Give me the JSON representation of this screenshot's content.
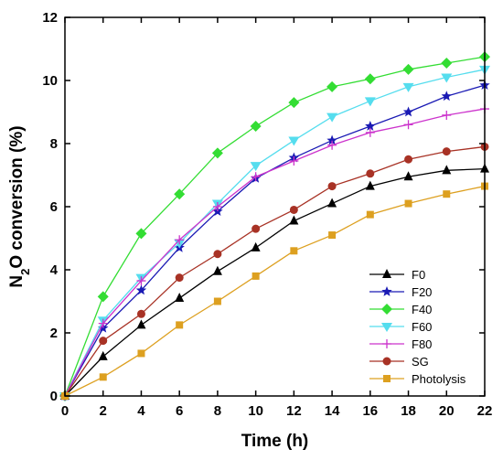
{
  "chart_data": {
    "type": "line",
    "title": "",
    "xlabel": "Time (h)",
    "ylabel": {
      "main": "N",
      "sub": "2",
      "rest": "O conversion (%)"
    },
    "xlim": [
      0,
      22
    ],
    "ylim": [
      0,
      12
    ],
    "xticks": [
      0,
      2,
      4,
      6,
      8,
      10,
      12,
      14,
      16,
      18,
      20,
      22
    ],
    "yticks": [
      0,
      2,
      4,
      6,
      8,
      10,
      12
    ],
    "grid": false,
    "legend_position": "bottom-right",
    "series": [
      {
        "name": "F0",
        "color": "#000000",
        "marker": "triangle-up",
        "x": [
          0,
          2,
          4,
          6,
          8,
          10,
          12,
          14,
          16,
          18,
          20,
          22
        ],
        "y": [
          0,
          1.25,
          2.25,
          3.1,
          3.95,
          4.7,
          5.55,
          6.1,
          6.65,
          6.95,
          7.15,
          7.2
        ]
      },
      {
        "name": "F20",
        "color": "#1a1ab4",
        "marker": "star",
        "x": [
          0,
          2,
          4,
          6,
          8,
          10,
          12,
          14,
          16,
          18,
          20,
          22
        ],
        "y": [
          0,
          2.15,
          3.35,
          4.7,
          5.85,
          6.9,
          7.55,
          8.1,
          8.55,
          9.0,
          9.5,
          9.85
        ]
      },
      {
        "name": "F40",
        "color": "#33dd33",
        "marker": "diamond",
        "x": [
          0,
          2,
          4,
          6,
          8,
          10,
          12,
          14,
          16,
          18,
          20,
          22
        ],
        "y": [
          0,
          3.15,
          5.15,
          6.4,
          7.7,
          8.55,
          9.3,
          9.8,
          10.05,
          10.35,
          10.55,
          10.75
        ]
      },
      {
        "name": "F60",
        "color": "#55ddee",
        "marker": "triangle-down",
        "x": [
          0,
          2,
          4,
          6,
          8,
          10,
          12,
          14,
          16,
          18,
          20,
          22
        ],
        "y": [
          0,
          2.4,
          3.75,
          4.85,
          6.1,
          7.3,
          8.1,
          8.85,
          9.35,
          9.8,
          10.1,
          10.35
        ]
      },
      {
        "name": "F80",
        "color": "#cc33cc",
        "marker": "plus",
        "x": [
          0,
          2,
          4,
          6,
          8,
          10,
          12,
          14,
          16,
          18,
          20,
          22
        ],
        "y": [
          0,
          2.3,
          3.65,
          4.95,
          6.0,
          6.95,
          7.45,
          7.95,
          8.35,
          8.6,
          8.9,
          9.1
        ]
      },
      {
        "name": "SG",
        "color": "#a83225",
        "marker": "circle",
        "x": [
          0,
          2,
          4,
          6,
          8,
          10,
          12,
          14,
          16,
          18,
          20,
          22
        ],
        "y": [
          0,
          1.75,
          2.6,
          3.75,
          4.5,
          5.3,
          5.9,
          6.65,
          7.05,
          7.5,
          7.75,
          7.9
        ]
      },
      {
        "name": "Photolysis",
        "color": "#dda020",
        "marker": "square",
        "x": [
          0,
          2,
          4,
          6,
          8,
          10,
          12,
          14,
          16,
          18,
          20,
          22
        ],
        "y": [
          0,
          0.6,
          1.35,
          2.25,
          3.0,
          3.8,
          4.6,
          5.1,
          5.75,
          6.1,
          6.4,
          6.65
        ]
      }
    ]
  }
}
